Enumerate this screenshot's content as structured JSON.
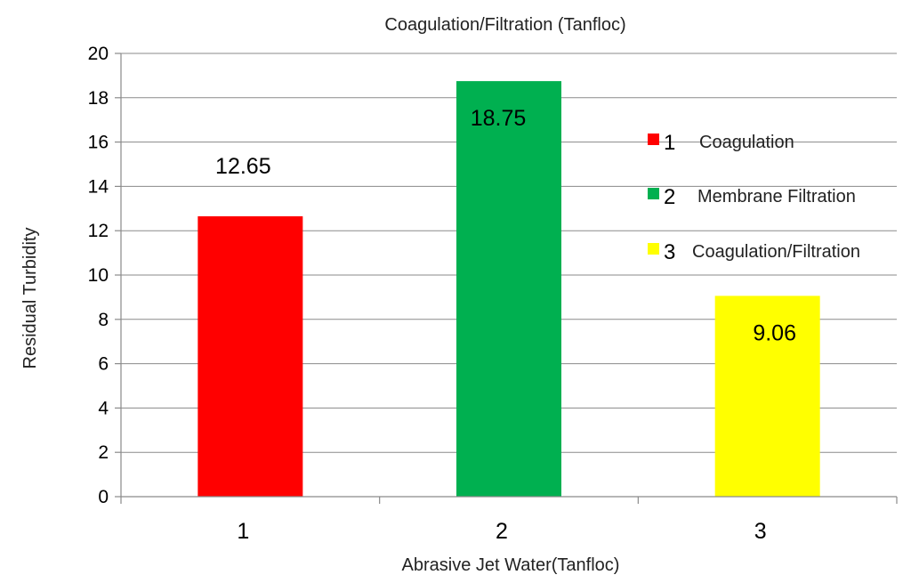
{
  "chart_data": {
    "type": "bar",
    "title": "Coagulation/Filtration (Tanfloc)",
    "xlabel": "Abrasive Jet Water(Tanfloc)",
    "ylabel": "Residual Turbidity",
    "categories": [
      "1",
      "2",
      "3"
    ],
    "values": [
      12.65,
      18.75,
      9.06
    ],
    "data_labels": [
      "12.65",
      "18.75",
      "9.06"
    ],
    "colors": [
      "#ff0000",
      "#00b050",
      "#ffff00"
    ],
    "ylim": [
      0,
      20
    ],
    "yticks": [
      0,
      2,
      4,
      6,
      8,
      10,
      12,
      14,
      16,
      18,
      20
    ],
    "grid": true,
    "legend_position": "right",
    "legend": [
      {
        "num": "1",
        "label": "Coagulation",
        "color": "#ff0000"
      },
      {
        "num": "2",
        "label": "Membrane Filtration",
        "color": "#00b050"
      },
      {
        "num": "3",
        "label": "Coagulation/Filtration",
        "color": "#ffff00"
      }
    ]
  }
}
